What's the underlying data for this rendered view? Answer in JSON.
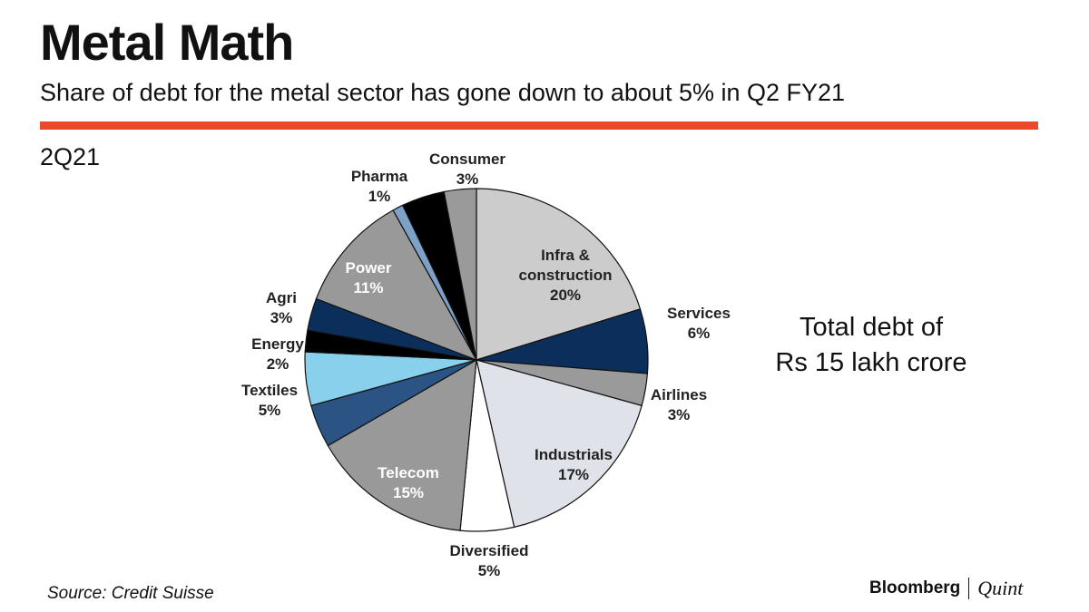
{
  "header": {
    "title": "Metal Math",
    "subtitle": "Share of debt for the metal sector has gone down to about 5% in Q2 FY21"
  },
  "colors": {
    "accent_rule": "#ea4a2c"
  },
  "chart_data": {
    "type": "pie",
    "title": "2Q21",
    "note_lines": [
      "Total debt of",
      "Rs 15 lakh crore"
    ],
    "unit": "%",
    "slices": [
      {
        "key": "infra",
        "label_lines": [
          "Infra &",
          "construction"
        ],
        "value": 20,
        "color": "#cccccc",
        "label_color": "#222222"
      },
      {
        "key": "services",
        "label_lines": [
          "Services"
        ],
        "value": 6,
        "color": "#0b2e5b",
        "label_color": "#222222"
      },
      {
        "key": "airlines",
        "label_lines": [
          "Airlines"
        ],
        "value": 3,
        "color": "#9a9a9a",
        "label_color": "#222222"
      },
      {
        "key": "industrials",
        "label_lines": [
          "Industrials"
        ],
        "value": 17,
        "color": "#dfe2e9",
        "label_color": "#222222"
      },
      {
        "key": "diversified",
        "label_lines": [
          "Diversified"
        ],
        "value": 5,
        "color": "#ffffff",
        "label_color": "#222222"
      },
      {
        "key": "telecom",
        "label_lines": [
          "Telecom"
        ],
        "value": 15,
        "color": "#999999",
        "label_color": "#ffffff"
      },
      {
        "key": "unlabeled-blue",
        "label_lines": [],
        "value": 4,
        "color": "#2b5384",
        "label_color": "#222222"
      },
      {
        "key": "textiles",
        "label_lines": [
          "Textiles"
        ],
        "value": 5,
        "color": "#88d0ec",
        "label_color": "#222222"
      },
      {
        "key": "energy",
        "label_lines": [
          "Energy"
        ],
        "value": 2,
        "color": "#000000",
        "label_color": "#222222"
      },
      {
        "key": "agri",
        "label_lines": [
          "Agri"
        ],
        "value": 3,
        "color": "#0b2e5b",
        "label_color": "#222222"
      },
      {
        "key": "power",
        "label_lines": [
          "Power"
        ],
        "value": 11,
        "color": "#999999",
        "label_color": "#ffffff"
      },
      {
        "key": "pharma",
        "label_lines": [
          "Pharma"
        ],
        "value": 1,
        "color": "#7ea1c8",
        "label_color": "#222222"
      },
      {
        "key": "unlabeled-black",
        "label_lines": [],
        "value": 4,
        "color": "#000000",
        "label_color": "#222222"
      },
      {
        "key": "consumer",
        "label_lines": [
          "Consumer"
        ],
        "value": 3,
        "color": "#9a9a9a",
        "label_color": "#222222"
      }
    ]
  },
  "footer": {
    "source": "Source: Credit Suisse",
    "brand_primary": "Bloomberg",
    "brand_secondary": "Quint"
  }
}
